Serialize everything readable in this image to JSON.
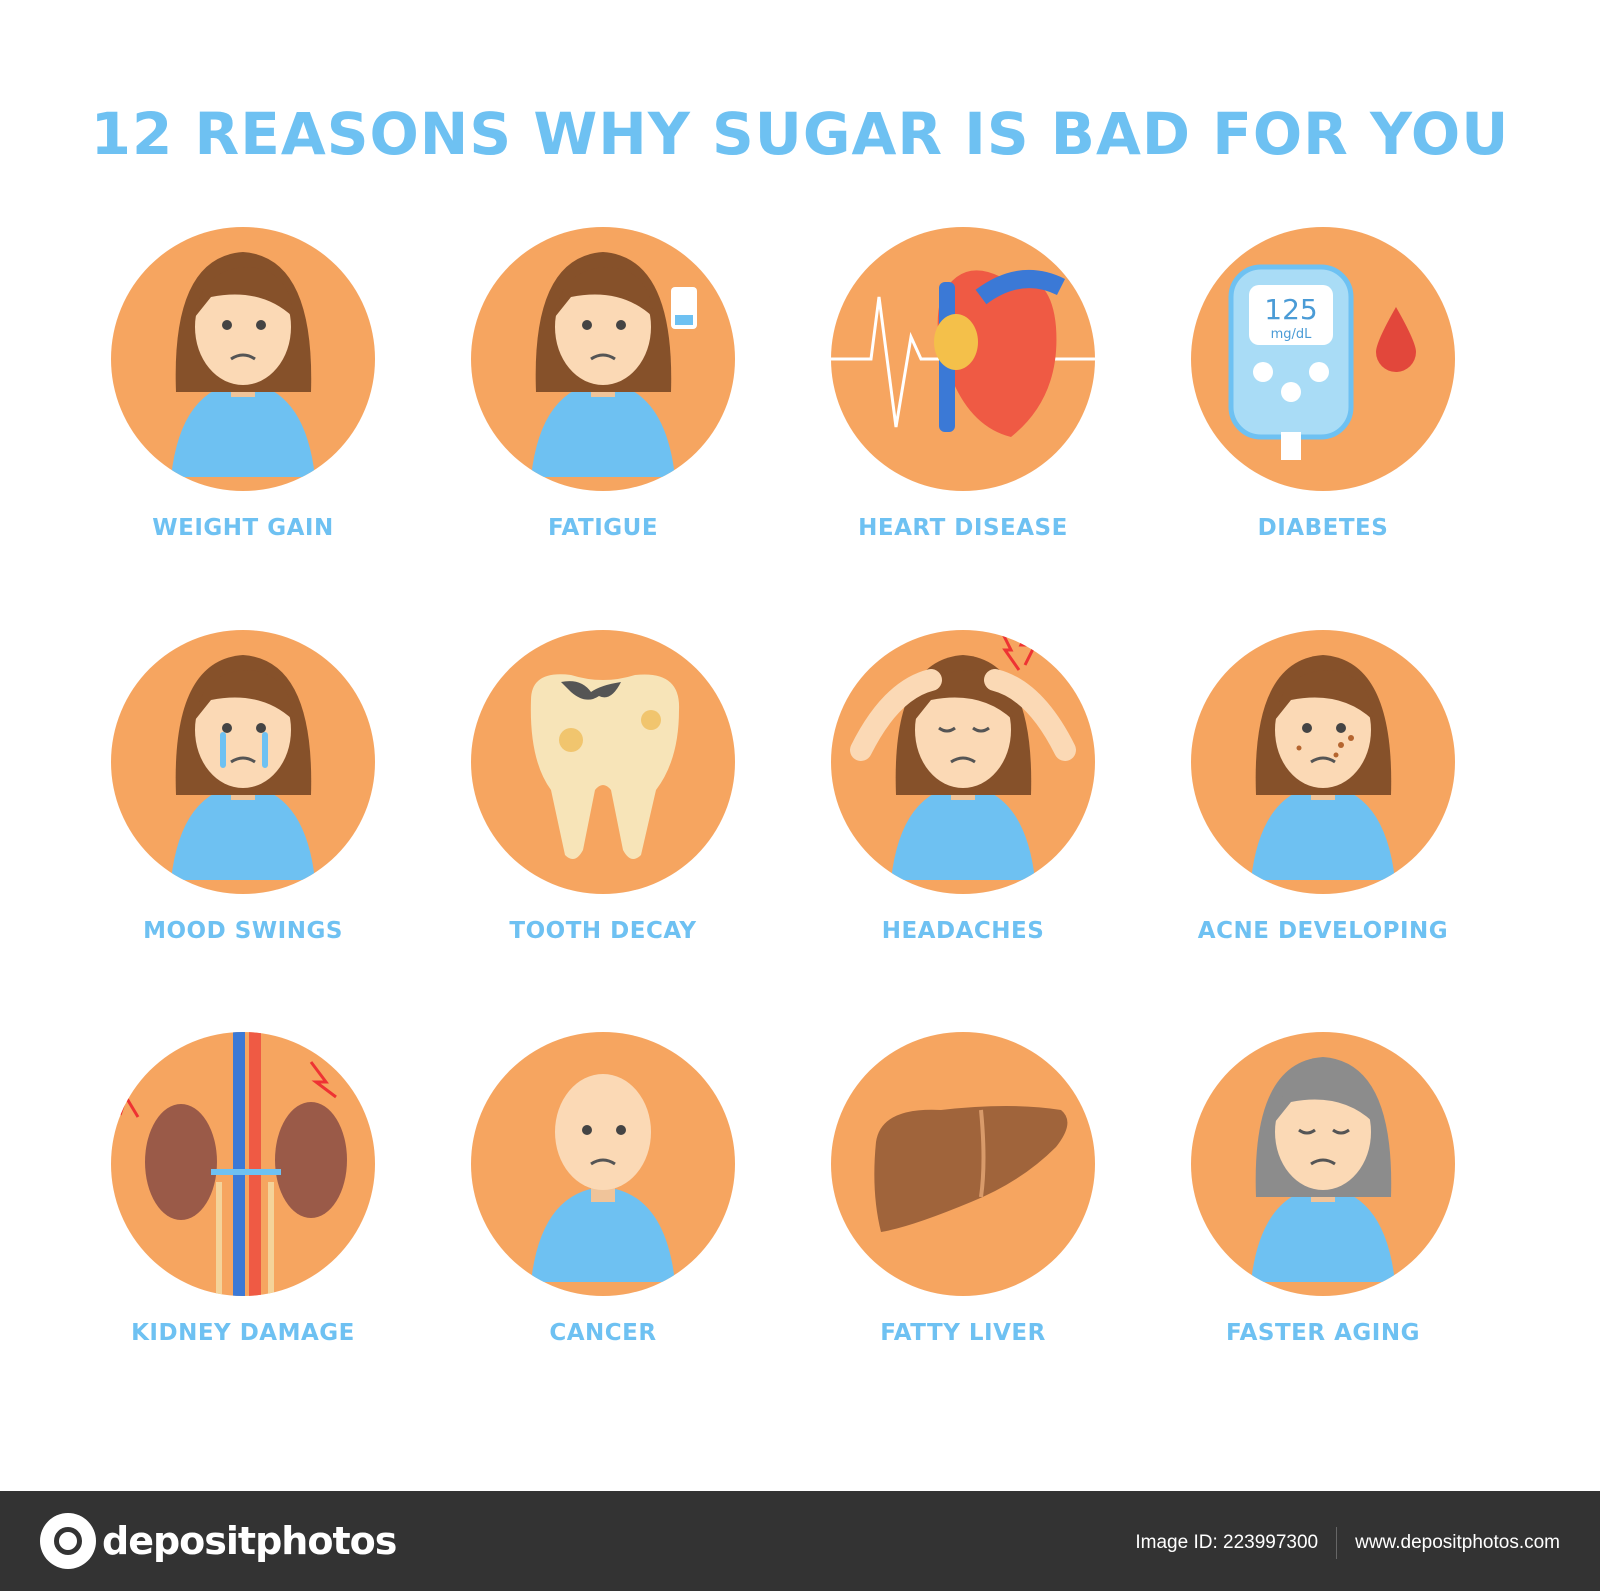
{
  "title": "12 REASONS WHY SUGAR IS BAD FOR YOU",
  "colors": {
    "circle": "#f6a560",
    "accent": "#6ec1f2",
    "hair": "#86512a",
    "skin": "#fbd9b5",
    "footer": "#333333"
  },
  "items": [
    {
      "label": "WEIGHT GAIN",
      "icon": "woman-sad-icon"
    },
    {
      "label": "FATIGUE",
      "icon": "woman-tired-low-battery-icon"
    },
    {
      "label": "HEART DISEASE",
      "icon": "heart-pulse-icon"
    },
    {
      "label": "DIABETES",
      "icon": "glucose-meter-icon",
      "meter_value": "125",
      "meter_unit": "mg/dL"
    },
    {
      "label": "MOOD SWINGS",
      "icon": "woman-crying-icon"
    },
    {
      "label": "TOOTH DECAY",
      "icon": "decayed-tooth-icon"
    },
    {
      "label": "HEADACHES",
      "icon": "woman-headache-icon"
    },
    {
      "label": "ACNE DEVELOPING",
      "icon": "woman-acne-icon"
    },
    {
      "label": "KIDNEY DAMAGE",
      "icon": "kidneys-icon"
    },
    {
      "label": "CANCER",
      "icon": "bald-woman-icon"
    },
    {
      "label": "FATTY LIVER",
      "icon": "liver-icon"
    },
    {
      "label": "FASTER AGING",
      "icon": "old-woman-icon"
    }
  ],
  "footer": {
    "brand": "depositphotos",
    "image_id": "Image ID: 223997300",
    "url": "www.depositphotos.com"
  }
}
